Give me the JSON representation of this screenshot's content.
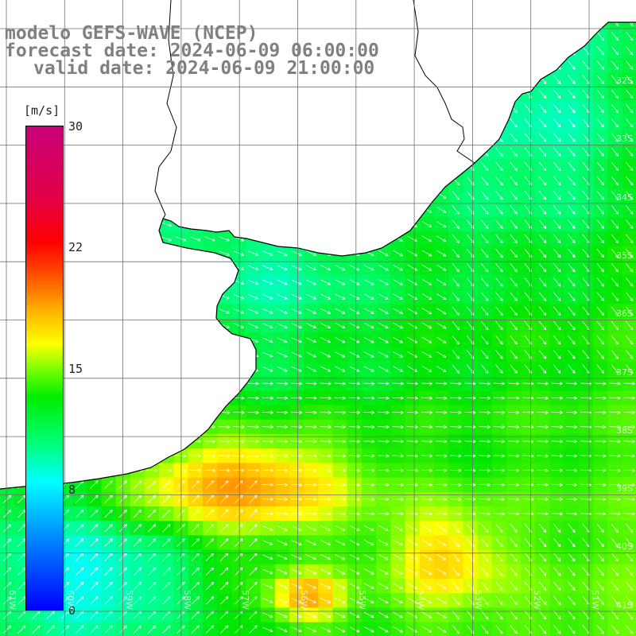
{
  "title": {
    "model": "modelo GEFS-WAVE (NCEP)",
    "forecast": "forecast date: 2024-06-09 06:00:00",
    "valid": "valid date: 2024-06-09 21:00:00"
  },
  "colorbar": {
    "unit": "[m/s]",
    "ticks": [
      "30",
      "22",
      "15",
      "8",
      "0"
    ]
  },
  "grid": {
    "lat_labels": [
      "32S",
      "33S",
      "34S",
      "35S",
      "36S",
      "37S",
      "38S",
      "39S",
      "40S",
      "41S"
    ],
    "lon_labels": [
      "61W",
      "60W",
      "59W",
      "58W",
      "57W",
      "56W",
      "55W",
      "54W",
      "53W",
      "52W",
      "51W"
    ]
  },
  "colors": {
    "land": "#ffffff",
    "coast": "#000000",
    "grid": "#6e6e6e",
    "arrows": "#ffffff"
  }
}
